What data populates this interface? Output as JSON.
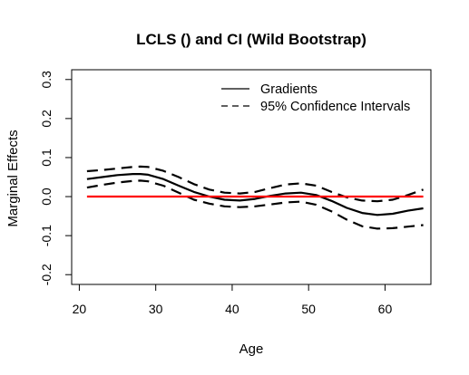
{
  "chart_data": {
    "type": "line",
    "title": "LCLS () and CI (Wild Bootstrap)",
    "xlabel": "Age",
    "ylabel": "Marginal Effects",
    "xlim": [
      19,
      66
    ],
    "ylim": [
      -0.225,
      0.325
    ],
    "x_ticks": [
      20,
      30,
      40,
      50,
      60
    ],
    "y_ticks": [
      -0.2,
      -0.1,
      0.0,
      0.1,
      0.2,
      0.3
    ],
    "y_tick_labels": [
      "-0.2",
      "-0.1",
      "0.0",
      "0.1",
      "0.2",
      "0.3"
    ],
    "grid": false,
    "legend_position": "top-right",
    "legend": [
      {
        "label": "Gradients",
        "style": "solid"
      },
      {
        "label": "95% Confidence Intervals",
        "style": "dashed"
      }
    ],
    "x": [
      21,
      23,
      25,
      27,
      28,
      29,
      31,
      33,
      35,
      37,
      39,
      41,
      43,
      45,
      47,
      49,
      51,
      53,
      55,
      57,
      59,
      61,
      63,
      65
    ],
    "series": [
      {
        "name": "Gradients",
        "style": "solid",
        "color": "#000000",
        "values": [
          0.045,
          0.05,
          0.055,
          0.058,
          0.058,
          0.056,
          0.045,
          0.028,
          0.012,
          0.0,
          -0.008,
          -0.01,
          -0.006,
          0.002,
          0.008,
          0.01,
          0.004,
          -0.011,
          -0.029,
          -0.042,
          -0.047,
          -0.044,
          -0.036,
          -0.03
        ]
      },
      {
        "name": "95% Confidence Intervals",
        "style": "dashed",
        "color": "#000000",
        "values": [
          0.065,
          0.068,
          0.072,
          0.076,
          0.077,
          0.076,
          0.066,
          0.05,
          0.032,
          0.018,
          0.01,
          0.008,
          0.012,
          0.022,
          0.031,
          0.034,
          0.028,
          0.012,
          -0.002,
          -0.01,
          -0.012,
          -0.008,
          0.004,
          0.018
        ]
      },
      {
        "name": "95% Confidence Intervals",
        "style": "dashed",
        "color": "#000000",
        "values": [
          0.023,
          0.03,
          0.036,
          0.04,
          0.041,
          0.039,
          0.028,
          0.01,
          -0.008,
          -0.018,
          -0.025,
          -0.027,
          -0.025,
          -0.02,
          -0.015,
          -0.013,
          -0.021,
          -0.038,
          -0.059,
          -0.076,
          -0.082,
          -0.081,
          -0.077,
          -0.073
        ]
      },
      {
        "name": "",
        "style": "solid",
        "color": "#ff0000",
        "values": [
          0,
          0,
          0,
          0,
          0,
          0,
          0,
          0,
          0,
          0,
          0,
          0,
          0,
          0,
          0,
          0,
          0,
          0,
          0,
          0,
          0,
          0,
          0,
          0
        ]
      }
    ]
  }
}
